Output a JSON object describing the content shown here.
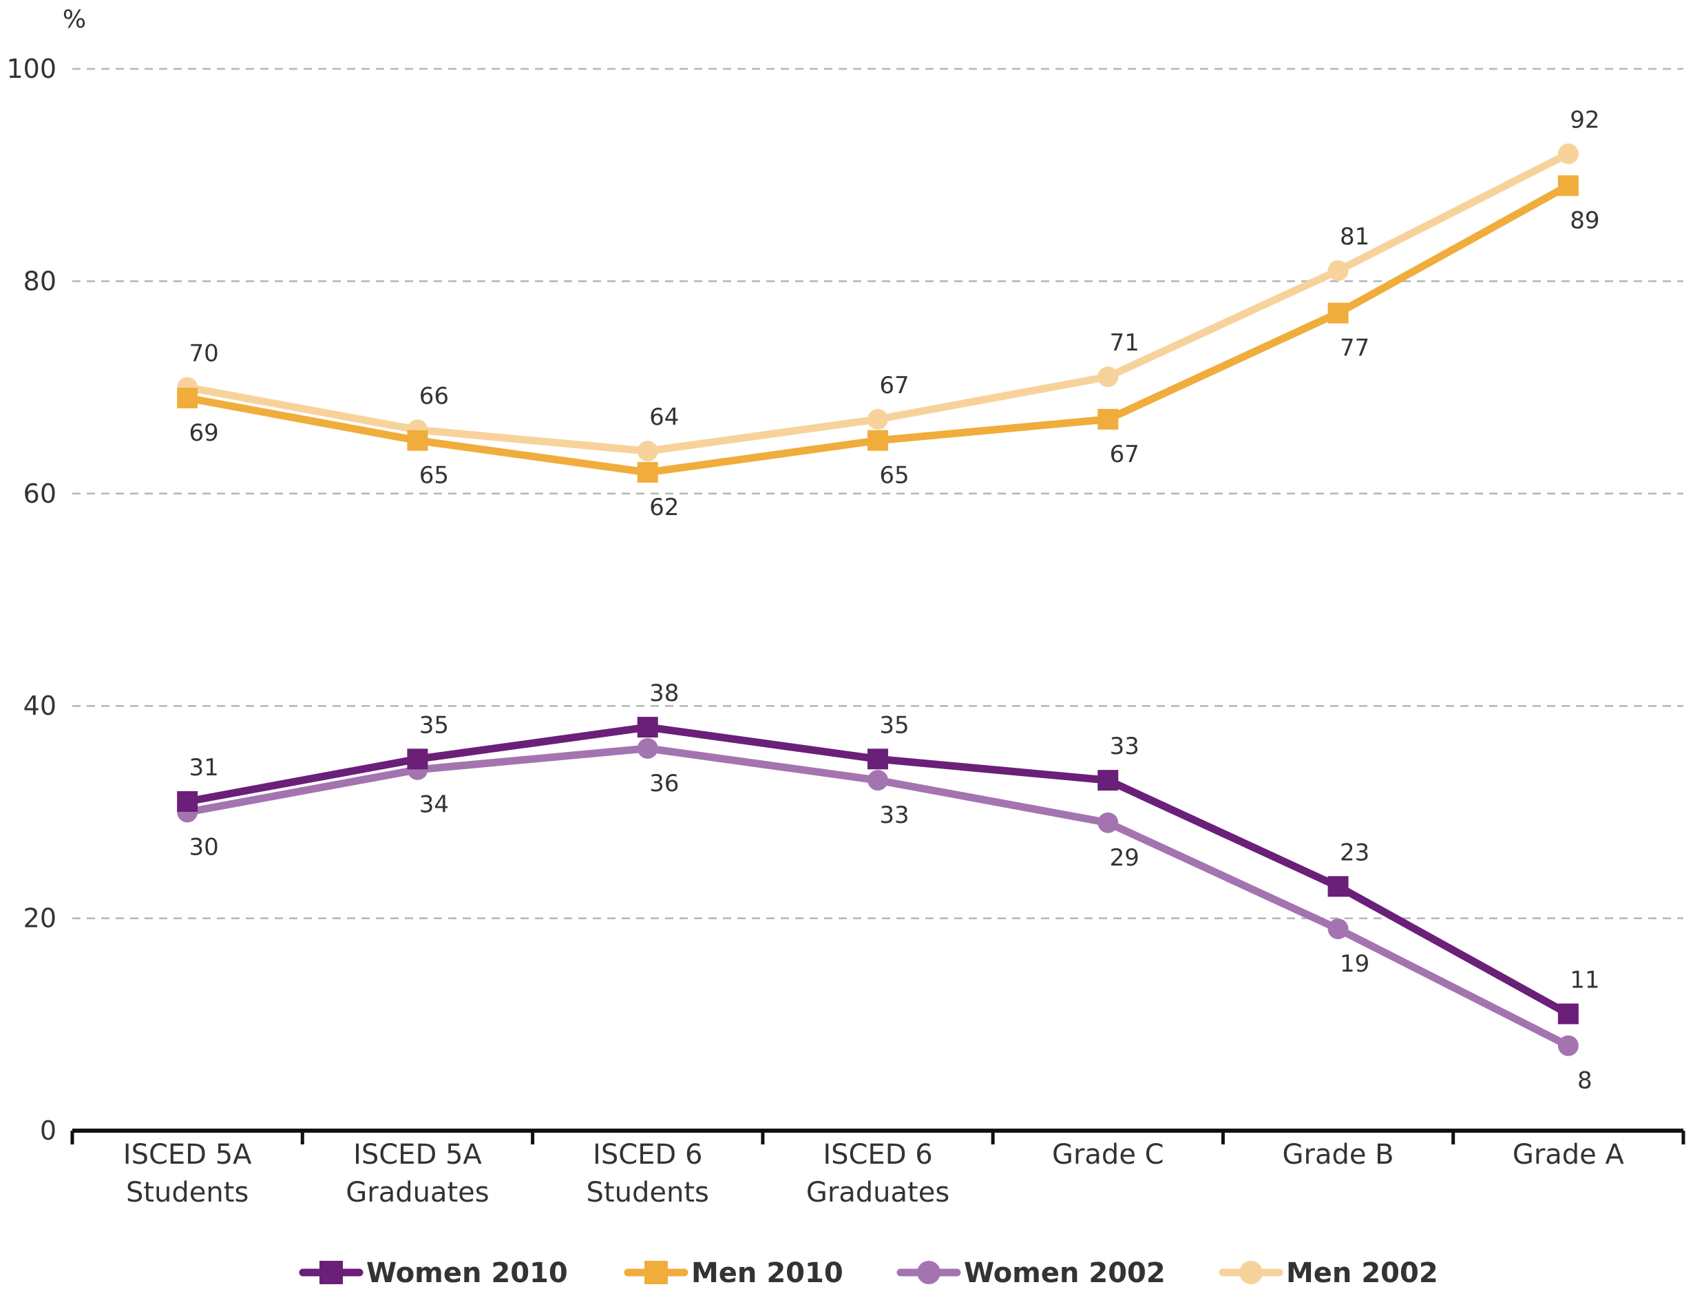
{
  "chart_data": {
    "type": "line",
    "title": "",
    "unit_label": "%",
    "xlabel": "",
    "ylabel": "%",
    "ylim": [
      0,
      100
    ],
    "yticks": [
      0,
      20,
      40,
      60,
      80,
      100
    ],
    "grid": true,
    "legend_position": "bottom",
    "categories": [
      [
        "ISCED 5A",
        "Students"
      ],
      [
        "ISCED 5A",
        "Graduates"
      ],
      [
        "ISCED 6",
        "Students"
      ],
      [
        "ISCED 6",
        "Graduates"
      ],
      [
        "Grade C"
      ],
      [
        "Grade B"
      ],
      [
        "Grade A"
      ]
    ],
    "series": [
      {
        "name": "Women 2010",
        "color": "#6a1f78",
        "marker": "square",
        "label_pos": [
          "above",
          "above",
          "above",
          "above",
          "above",
          "above",
          "above"
        ],
        "values": [
          31,
          35,
          38,
          35,
          33,
          23,
          11
        ]
      },
      {
        "name": "Men 2010",
        "color": "#f0ad3c",
        "marker": "square",
        "label_pos": [
          "below",
          "below",
          "below",
          "below",
          "below",
          "below",
          "below"
        ],
        "values": [
          69,
          65,
          62,
          65,
          67,
          77,
          89
        ]
      },
      {
        "name": "Women 2002",
        "color": "#a474b0",
        "marker": "circle",
        "label_pos": [
          "below",
          "below",
          "below",
          "below",
          "below",
          "below",
          "below"
        ],
        "values": [
          30,
          34,
          36,
          33,
          29,
          19,
          8
        ]
      },
      {
        "name": "Men 2002",
        "color": "#f7d39b",
        "marker": "circle",
        "label_pos": [
          "above",
          "above",
          "above",
          "above",
          "above",
          "above",
          "above"
        ],
        "values": [
          70,
          66,
          64,
          67,
          71,
          81,
          92
        ]
      }
    ]
  }
}
